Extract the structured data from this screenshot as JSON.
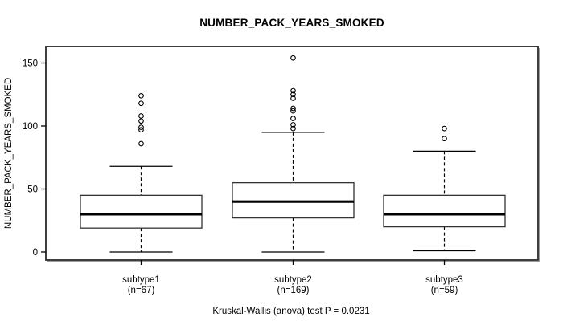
{
  "colors": {
    "line": "#000000",
    "box_border": "#333333",
    "box_fill": "#ffffff",
    "plot_border": "#2a2a2a",
    "border_shadow": "#9c9c9c",
    "background": "#ffffff",
    "text": "#000000"
  },
  "chart_data": {
    "type": "boxplot",
    "title": "NUMBER_PACK_YEARS_SMOKED",
    "ylabel": "NUMBER_PACK_YEARS_SMOKED",
    "xlabel": "",
    "caption": "Kruskal-Wallis (anova) test P = 0.0231",
    "yticks": [
      0,
      50,
      100,
      150
    ],
    "ylim": [
      -6,
      163
    ],
    "grid": false,
    "legend": "none",
    "groups": [
      {
        "label": "subtype1",
        "sublabel": "(n=67)",
        "n": 67,
        "whisker_low": 0,
        "q1": 19,
        "median": 30,
        "q3": 45,
        "whisker_high": 68,
        "outliers": [
          124,
          118,
          108,
          104,
          99,
          97,
          86
        ]
      },
      {
        "label": "subtype2",
        "sublabel": "(n=169)",
        "n": 169,
        "whisker_low": 0,
        "q1": 27,
        "median": 40,
        "q3": 55,
        "whisker_high": 95,
        "outliers": [
          154,
          128,
          125,
          122,
          114,
          112,
          106,
          101,
          98
        ]
      },
      {
        "label": "subtype3",
        "sublabel": "(n=59)",
        "n": 59,
        "whisker_low": 1,
        "q1": 20,
        "median": 30,
        "q3": 45,
        "whisker_high": 80,
        "outliers": [
          98,
          90
        ]
      }
    ]
  }
}
